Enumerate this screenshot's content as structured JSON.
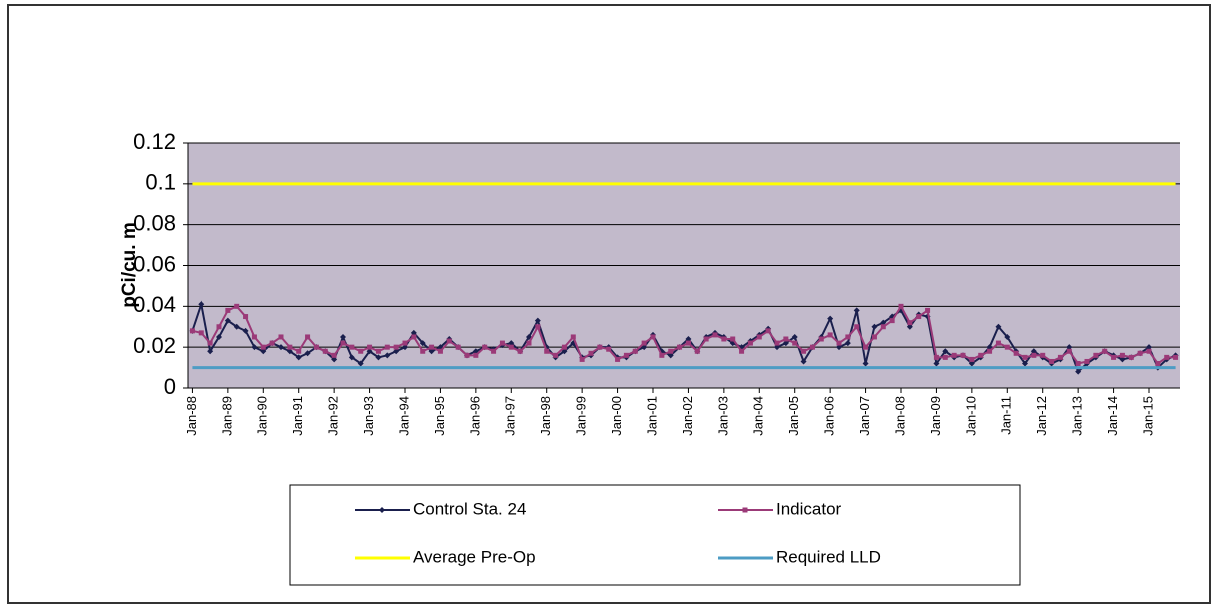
{
  "chart_data": {
    "type": "line",
    "y_label": "pCi/cu. m",
    "categories": [
      "Jan-88",
      null,
      null,
      null,
      "Jan-89",
      null,
      null,
      null,
      "Jan-90",
      null,
      null,
      null,
      "Jan-91",
      null,
      null,
      null,
      "Jan-92",
      null,
      null,
      null,
      "Jan-93",
      null,
      null,
      null,
      "Jan-94",
      null,
      null,
      null,
      "Jan-95",
      null,
      null,
      null,
      "Jan-96",
      null,
      null,
      null,
      "Jan-97",
      null,
      null,
      null,
      "Jan-98",
      null,
      null,
      null,
      "Jan-99",
      null,
      null,
      null,
      "Jan-00",
      null,
      null,
      null,
      "Jan-01",
      null,
      null,
      null,
      "Jan-02",
      null,
      null,
      null,
      "Jan-03",
      null,
      null,
      null,
      "Jan-04",
      null,
      null,
      null,
      "Jan-05",
      null,
      null,
      null,
      "Jan-06",
      null,
      null,
      null,
      "Jan-07",
      null,
      null,
      null,
      "Jan-08",
      null,
      null,
      null,
      "Jan-09",
      null,
      null,
      null,
      "Jan-10",
      null,
      null,
      null,
      "Jan-11",
      null,
      null,
      null,
      "Jan-12",
      null,
      null,
      null,
      "Jan-13",
      null,
      null,
      null,
      "Jan-14",
      null,
      null,
      null,
      "Jan-15",
      null,
      null,
      null
    ],
    "series": [
      {
        "name": "Control Sta. 24",
        "color": "#1a1f4d",
        "marker": "diamond",
        "values": [
          0.028,
          0.041,
          0.018,
          0.025,
          0.033,
          0.03,
          0.028,
          0.02,
          0.018,
          0.022,
          0.02,
          0.018,
          0.015,
          0.017,
          0.02,
          0.018,
          0.014,
          0.025,
          0.015,
          0.012,
          0.018,
          0.015,
          0.016,
          0.018,
          0.02,
          0.027,
          0.022,
          0.018,
          0.02,
          0.024,
          0.02,
          0.016,
          0.018,
          0.02,
          0.019,
          0.021,
          0.022,
          0.018,
          0.025,
          0.033,
          0.02,
          0.015,
          0.018,
          0.022,
          0.015,
          0.016,
          0.02,
          0.02,
          0.015,
          0.015,
          0.018,
          0.02,
          0.026,
          0.018,
          0.016,
          0.02,
          0.024,
          0.018,
          0.025,
          0.027,
          0.025,
          0.022,
          0.02,
          0.023,
          0.026,
          0.029,
          0.02,
          0.022,
          0.025,
          0.013,
          0.02,
          0.025,
          0.034,
          0.02,
          0.022,
          0.038,
          0.012,
          0.03,
          0.032,
          0.035,
          0.038,
          0.03,
          0.036,
          0.035,
          0.012,
          0.018,
          0.015,
          0.016,
          0.012,
          0.015,
          0.02,
          0.03,
          0.025,
          0.018,
          0.012,
          0.018,
          0.015,
          0.012,
          0.014,
          0.02,
          0.008,
          0.012,
          0.015,
          0.018,
          0.016,
          0.014,
          0.015,
          0.017,
          0.02,
          0.01,
          0.014,
          0.016
        ]
      },
      {
        "name": "Indicator",
        "color": "#9b3a78",
        "marker": "square",
        "values": [
          0.028,
          0.027,
          0.022,
          0.03,
          0.038,
          0.04,
          0.035,
          0.025,
          0.02,
          0.022,
          0.025,
          0.02,
          0.018,
          0.025,
          0.02,
          0.018,
          0.016,
          0.022,
          0.02,
          0.018,
          0.02,
          0.018,
          0.02,
          0.02,
          0.022,
          0.025,
          0.018,
          0.02,
          0.018,
          0.023,
          0.02,
          0.016,
          0.016,
          0.02,
          0.018,
          0.022,
          0.02,
          0.018,
          0.022,
          0.03,
          0.018,
          0.016,
          0.02,
          0.025,
          0.014,
          0.017,
          0.02,
          0.019,
          0.014,
          0.016,
          0.018,
          0.022,
          0.025,
          0.016,
          0.018,
          0.02,
          0.022,
          0.018,
          0.024,
          0.026,
          0.024,
          0.024,
          0.018,
          0.022,
          0.025,
          0.028,
          0.022,
          0.024,
          0.022,
          0.018,
          0.02,
          0.024,
          0.026,
          0.022,
          0.025,
          0.03,
          0.02,
          0.025,
          0.03,
          0.033,
          0.04,
          0.032,
          0.035,
          0.038,
          0.015,
          0.015,
          0.016,
          0.016,
          0.014,
          0.016,
          0.018,
          0.022,
          0.02,
          0.017,
          0.015,
          0.016,
          0.016,
          0.013,
          0.015,
          0.018,
          0.012,
          0.013,
          0.016,
          0.018,
          0.015,
          0.016,
          0.015,
          0.017,
          0.018,
          0.012,
          0.015,
          0.015
        ]
      },
      {
        "name": "Average Pre-Op",
        "color": "#ffff00",
        "marker": "none",
        "values": [
          0.1,
          0.1,
          0.1,
          0.1,
          0.1,
          0.1,
          0.1,
          0.1,
          0.1,
          0.1,
          0.1,
          0.1,
          0.1,
          0.1,
          0.1,
          0.1,
          0.1,
          0.1,
          0.1,
          0.1,
          0.1,
          0.1,
          0.1,
          0.1,
          0.1,
          0.1,
          0.1,
          0.1,
          0.1,
          0.1,
          0.1,
          0.1,
          0.1,
          0.1,
          0.1,
          0.1,
          0.1,
          0.1,
          0.1,
          0.1,
          0.1,
          0.1,
          0.1,
          0.1,
          0.1,
          0.1,
          0.1,
          0.1,
          0.1,
          0.1,
          0.1,
          0.1,
          0.1,
          0.1,
          0.1,
          0.1,
          0.1,
          0.1,
          0.1,
          0.1,
          0.1,
          0.1,
          0.1,
          0.1,
          0.1,
          0.1,
          0.1,
          0.1,
          0.1,
          0.1,
          0.1,
          0.1,
          0.1,
          0.1,
          0.1,
          0.1,
          0.1,
          0.1,
          0.1,
          0.1,
          0.1,
          0.1,
          0.1,
          0.1,
          0.1,
          0.1,
          0.1,
          0.1,
          0.1,
          0.1,
          0.1,
          0.1,
          0.1,
          0.1,
          0.1,
          0.1,
          0.1,
          0.1,
          0.1,
          0.1,
          0.1,
          0.1,
          0.1,
          0.1,
          0.1,
          0.1,
          0.1,
          0.1,
          0.1,
          0.1,
          0.1,
          0.1
        ]
      },
      {
        "name": "Required LLD",
        "color": "#4d9cc4",
        "marker": "none",
        "values": [
          0.01,
          0.01,
          0.01,
          0.01,
          0.01,
          0.01,
          0.01,
          0.01,
          0.01,
          0.01,
          0.01,
          0.01,
          0.01,
          0.01,
          0.01,
          0.01,
          0.01,
          0.01,
          0.01,
          0.01,
          0.01,
          0.01,
          0.01,
          0.01,
          0.01,
          0.01,
          0.01,
          0.01,
          0.01,
          0.01,
          0.01,
          0.01,
          0.01,
          0.01,
          0.01,
          0.01,
          0.01,
          0.01,
          0.01,
          0.01,
          0.01,
          0.01,
          0.01,
          0.01,
          0.01,
          0.01,
          0.01,
          0.01,
          0.01,
          0.01,
          0.01,
          0.01,
          0.01,
          0.01,
          0.01,
          0.01,
          0.01,
          0.01,
          0.01,
          0.01,
          0.01,
          0.01,
          0.01,
          0.01,
          0.01,
          0.01,
          0.01,
          0.01,
          0.01,
          0.01,
          0.01,
          0.01,
          0.01,
          0.01,
          0.01,
          0.01,
          0.01,
          0.01,
          0.01,
          0.01,
          0.01,
          0.01,
          0.01,
          0.01,
          0.01,
          0.01,
          0.01,
          0.01,
          0.01,
          0.01,
          0.01,
          0.01,
          0.01,
          0.01,
          0.01,
          0.01,
          0.01,
          0.01,
          0.01,
          0.01,
          0.01,
          0.01,
          0.01,
          0.01,
          0.01,
          0.01,
          0.01,
          0.01,
          0.01,
          0.01,
          0.01,
          0.01
        ]
      }
    ],
    "ylim": [
      0,
      0.12
    ],
    "yticks": [
      0,
      0.02,
      0.04,
      0.06,
      0.08,
      0.1,
      0.12
    ],
    "grid": true,
    "plot_background": "#c2bacb"
  }
}
